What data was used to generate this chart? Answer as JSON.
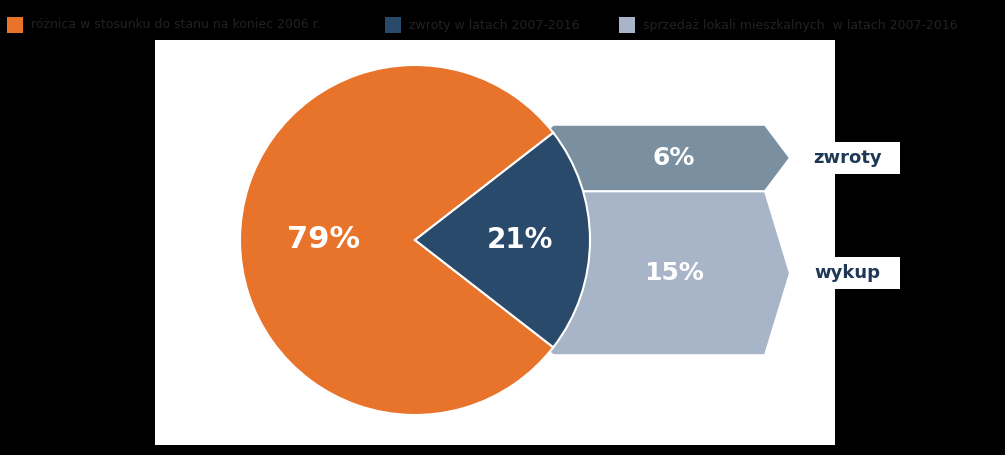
{
  "slices_pct": [
    79,
    21
  ],
  "sub_slices_pct": [
    6,
    15
  ],
  "pie_color_orange": "#E8732A",
  "pie_color_darkblue": "#2A4A6B",
  "arrow_color_top": "#7A8FA0",
  "arrow_color_bot": "#A8B4C8",
  "legend_labels": [
    "różnica w stosunku do stanu na koniec 2006 r.",
    "zwroty w latach 2007-2016",
    "sprzedaż lokali mieszkalnych  w latach 2007-2016"
  ],
  "legend_colors": [
    "#E8732A",
    "#2A4A6B",
    "#A8B4C8"
  ],
  "callout_labels": [
    "zwroty",
    "wykup"
  ],
  "label_79": "79%",
  "label_21": "21%",
  "label_6": "6%",
  "label_15": "15%",
  "white": "#ffffff",
  "dark_text": "#1E3855",
  "bg_white": "#ffffff",
  "bg_black": "#000000",
  "chart_bg": "#ffffff"
}
